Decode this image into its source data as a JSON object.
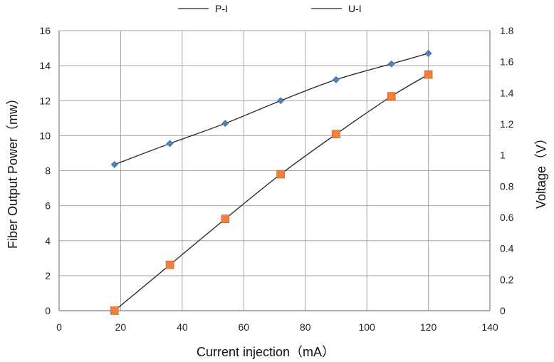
{
  "chart_data": {
    "type": "line",
    "xlabel": "Current injection（mA）",
    "ylabel": "Fiber Output Power（mw）",
    "y2label": "Voltage（V）",
    "xlim": [
      0,
      140
    ],
    "xticks": [
      0,
      20,
      40,
      60,
      80,
      100,
      120,
      140
    ],
    "ylim": [
      0,
      16
    ],
    "yticks": [
      0,
      2,
      4,
      6,
      8,
      10,
      12,
      14,
      16
    ],
    "y2lim": [
      0,
      1.8
    ],
    "y2ticks": [
      "0",
      "0.2",
      "0.4",
      "0.6",
      "0.8",
      "1",
      "1.2",
      "1.4",
      "1.6",
      "1.8"
    ],
    "grid": true,
    "legend_position": "top",
    "series": [
      {
        "name": "P-I",
        "axis": "left",
        "marker": "diamond",
        "marker_color": "#4F81BD",
        "line_color": "#222222",
        "x": [
          18,
          36,
          54,
          72,
          90,
          108,
          120
        ],
        "y": [
          8.35,
          9.55,
          10.7,
          12.0,
          13.2,
          14.1,
          14.7
        ]
      },
      {
        "name": "U-I",
        "axis": "right",
        "marker": "square",
        "marker_color": "#F0803C",
        "line_color": "#222222",
        "x": [
          18,
          36,
          54,
          72,
          90,
          108,
          120
        ],
        "y": [
          0.0,
          0.295,
          0.59,
          0.877,
          1.135,
          1.378,
          1.518
        ]
      }
    ]
  }
}
